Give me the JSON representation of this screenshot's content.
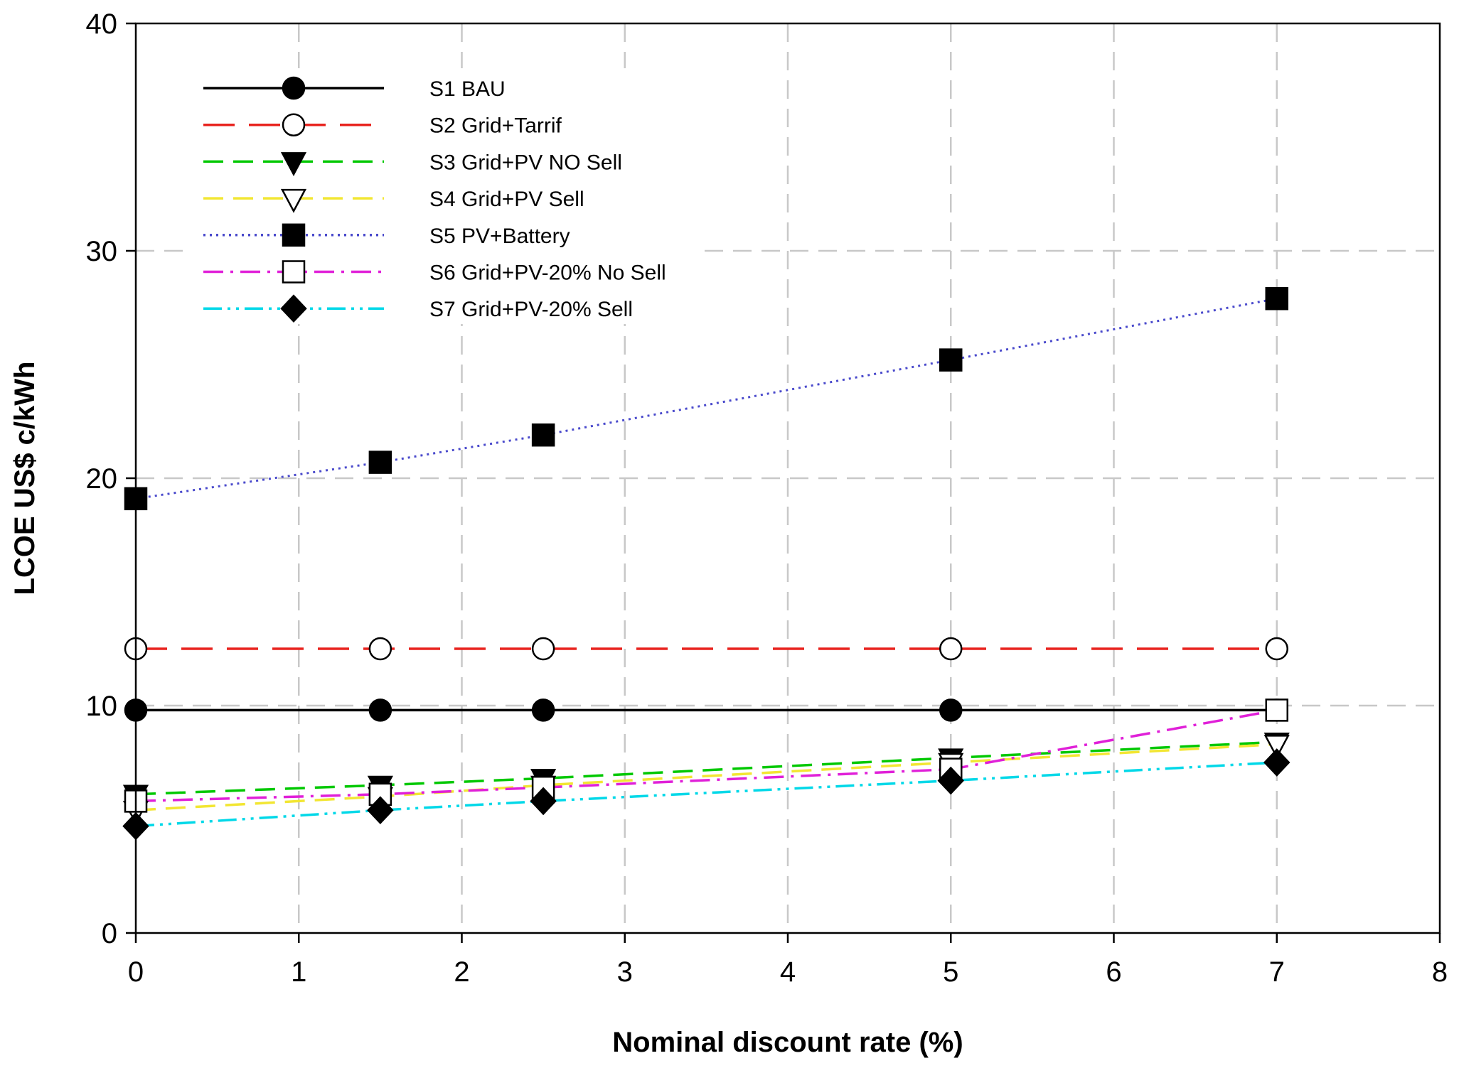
{
  "chart_data": {
    "type": "line",
    "title": "",
    "xlabel": "Nominal discount rate (%)",
    "ylabel": "LCOE US$ c/kWh",
    "xlim": [
      0,
      8
    ],
    "ylim": [
      0,
      40
    ],
    "xticks": [
      0,
      1,
      2,
      3,
      4,
      5,
      6,
      7,
      8
    ],
    "yticks": [
      0,
      10,
      20,
      30,
      40
    ],
    "grid": true,
    "legend_position": "top-left",
    "x": [
      0,
      1.5,
      2.5,
      5,
      7
    ],
    "series": [
      {
        "name": "S1 BAU",
        "color": "#000000",
        "dash": "solid",
        "marker": "filled-circle",
        "values": [
          9.8,
          9.8,
          9.8,
          9.8,
          9.8
        ]
      },
      {
        "name": "S2 Grid+Tarrif",
        "color": "#e8231e",
        "dash": "long-dash",
        "marker": "open-circle",
        "values": [
          12.5,
          12.5,
          12.5,
          12.5,
          12.5
        ]
      },
      {
        "name": "S3 Grid+PV NO Sell",
        "color": "#00c800",
        "dash": "dash",
        "marker": "filled-triangle-down",
        "values": [
          6.1,
          6.5,
          6.8,
          7.7,
          8.4
        ]
      },
      {
        "name": "S4 Grid+PV Sell",
        "color": "#f2e632",
        "dash": "dash",
        "marker": "open-triangle-down",
        "values": [
          5.4,
          6.0,
          6.5,
          7.5,
          8.3
        ]
      },
      {
        "name": "S5 PV+Battery",
        "color": "#4a4acc",
        "dash": "dot",
        "marker": "filled-square",
        "values": [
          19.1,
          20.7,
          21.9,
          25.2,
          27.9
        ]
      },
      {
        "name": "S6 Grid+PV-20% No Sell",
        "color": "#e020d8",
        "dash": "dash-dot",
        "marker": "open-square",
        "values": [
          5.8,
          6.1,
          6.4,
          7.2,
          9.8
        ]
      },
      {
        "name": "S7 Grid+PV-20% Sell",
        "color": "#00d8e8",
        "dash": "dash-dot-dot",
        "marker": "filled-diamond",
        "values": [
          4.7,
          5.4,
          5.8,
          6.7,
          7.5
        ]
      }
    ]
  }
}
